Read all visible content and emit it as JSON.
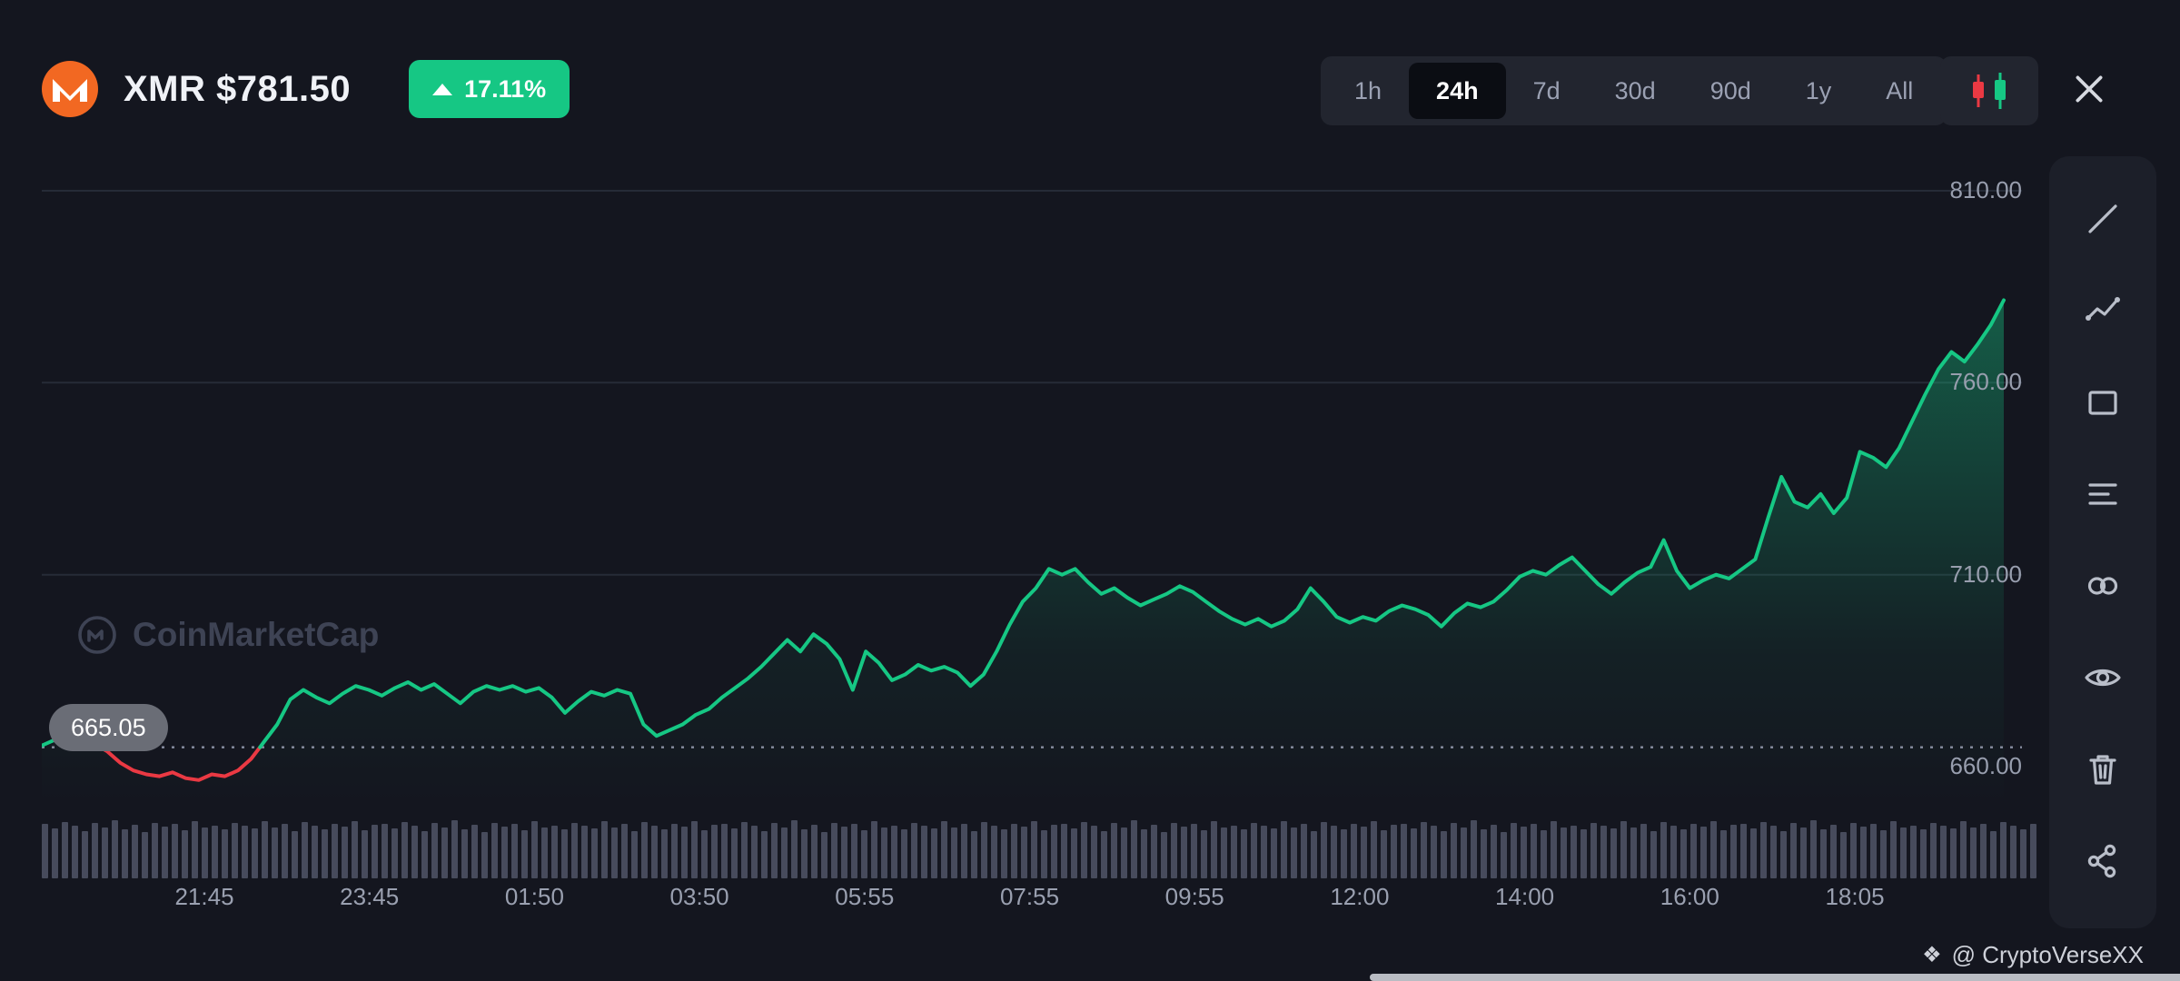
{
  "header": {
    "title": "XMR $781.50",
    "symbol": "XMR",
    "price": "$781.50",
    "change": "17.11%",
    "change_direction": "up"
  },
  "timeframes": {
    "options": [
      "1h",
      "24h",
      "7d",
      "30d",
      "90d",
      "1y",
      "All"
    ],
    "active": "24h"
  },
  "toolbar": {
    "tools": [
      "trend-line",
      "multi-point-line",
      "rectangle",
      "parallel-lines",
      "infinity",
      "visibility",
      "delete",
      "share"
    ]
  },
  "watermark": {
    "text": "CoinMarketCap"
  },
  "footer": {
    "credit": "@ CryptoVerseXX"
  },
  "chart_data": {
    "type": "area",
    "title": "XMR price, 24h",
    "open_price": 665.05,
    "open_price_label": "665.05",
    "last_price": 781.5,
    "change_percent": 17.11,
    "y_ticks": [
      "810.00",
      "760.00",
      "710.00",
      "660.00"
    ],
    "y_tick_values": [
      810,
      760,
      710,
      660
    ],
    "x_ticks": [
      "21:45",
      "23:45",
      "01:50",
      "03:50",
      "05:55",
      "07:55",
      "09:55",
      "12:00",
      "14:00",
      "16:00",
      "18:05"
    ],
    "ylim": [
      648,
      822
    ],
    "grid": true,
    "legend": false,
    "colors": {
      "up": "#16c784",
      "down": "#ea3943",
      "volume": "#474b5c"
    },
    "prices": [
      665.5,
      667,
      668.5,
      667.5,
      666,
      664,
      661,
      659,
      658,
      657.5,
      658.5,
      657,
      656.5,
      658,
      657.5,
      659,
      662,
      666.5,
      671,
      677.5,
      680,
      678,
      676.5,
      679,
      681,
      680,
      678.5,
      680.5,
      682,
      680,
      681.5,
      679,
      676.5,
      679.5,
      681,
      680,
      681,
      679.5,
      680.5,
      678,
      674,
      677,
      679.5,
      678.5,
      680,
      679,
      671,
      668,
      669.5,
      671,
      673.5,
      675,
      678,
      680.5,
      683,
      686,
      689.5,
      693,
      690,
      694.5,
      692,
      688,
      680,
      690,
      687,
      682.5,
      684,
      686.5,
      685,
      686,
      684.5,
      681,
      684,
      690,
      697,
      703,
      706.5,
      711.5,
      710,
      711.5,
      708,
      705,
      706.5,
      704,
      702,
      703.5,
      705,
      707,
      705.5,
      703,
      700.5,
      698.5,
      697,
      698.5,
      696.5,
      698,
      701,
      706.5,
      703,
      699,
      697.5,
      699,
      698,
      700.5,
      702,
      701,
      699.5,
      696.5,
      700,
      702.5,
      701.5,
      703,
      706,
      709.5,
      711,
      710,
      712.5,
      714.5,
      711,
      707.5,
      705,
      708,
      710.5,
      712,
      719,
      711,
      706.5,
      708.5,
      710,
      709,
      711.5,
      714,
      725,
      735.5,
      729,
      727.5,
      731,
      726,
      730,
      742,
      740.5,
      738,
      743,
      750,
      757,
      763.5,
      768,
      765.5,
      770,
      775,
      781.5
    ],
    "volume_pattern": [
      0.93,
      0.86,
      0.97,
      0.9,
      0.82,
      0.95,
      0.88,
      1.0,
      0.85,
      0.92,
      0.8,
      0.96,
      0.89,
      0.94,
      0.83,
      0.98,
      0.87,
      0.91,
      0.84,
      0.95,
      0.9,
      0.86,
      0.98,
      0.88,
      0.93,
      0.81,
      0.97,
      0.9,
      0.85,
      0.94,
      0.89,
      0.99,
      0.83,
      0.92
    ]
  }
}
